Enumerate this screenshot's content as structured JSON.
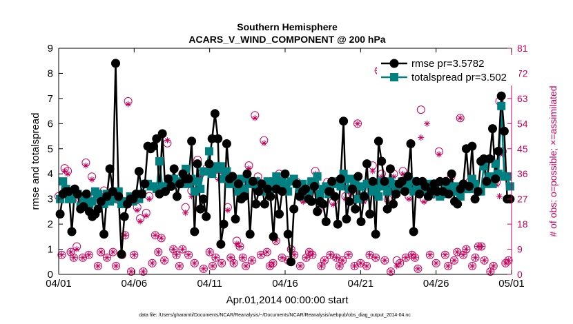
{
  "chart_data": {
    "type": "line",
    "title": "Southern Hemisphere",
    "subtitle": "ACARS_V_WIND_COMPONENT @ 200 hPa",
    "xlabel": "Apr.01,2014 00:00:00 start",
    "ylabel": "rmse and totalspread",
    "y2label": "# of obs: o=possible; ×=assimilated",
    "footnote": "data file: /Users/gharamti/Documents/NCAR/Reanalysis/~/Documents/NCAR/Reanalysis/webpub/obs_diag_output_2014-04.nc",
    "xlim": [
      0,
      30
    ],
    "ylim": [
      0,
      9
    ],
    "y2lim": [
      0,
      81
    ],
    "x_ticks": [
      {
        "value": 0,
        "label": "04/01"
      },
      {
        "value": 5,
        "label": "04/06"
      },
      {
        "value": 10,
        "label": "04/11"
      },
      {
        "value": 15,
        "label": "04/16"
      },
      {
        "value": 20,
        "label": "04/21"
      },
      {
        "value": 25,
        "label": "04/26"
      },
      {
        "value": 30,
        "label": "05/01"
      }
    ],
    "y_ticks": [
      "0",
      "1",
      "2",
      "3",
      "4",
      "5",
      "6",
      "7",
      "8",
      "9"
    ],
    "y2_ticks": [
      "0",
      "9",
      "18",
      "27",
      "36",
      "45",
      "54",
      "63",
      "72",
      "81"
    ],
    "legend_position": "top-right",
    "colors": {
      "rmse": "#000000",
      "spread": "#008080",
      "obs": "#c8005a"
    },
    "series": [
      {
        "name": "rmse pr=3.5782",
        "values": [
          2.4,
          3.2,
          3.3,
          3.3,
          1.7,
          3.4,
          3.2,
          2.6,
          2.7,
          3.2,
          2.5,
          2.3,
          2.4,
          2.6,
          2.9,
          1.6,
          3.1,
          4.2,
          3.3,
          8.4,
          3.1,
          0.8,
          2.3,
          2.8,
          3.0,
          3.0,
          3.2,
          4.1,
          3.2,
          3.6,
          5.1,
          5.0,
          5.1,
          5.4,
          3.2,
          5.6,
          3.3,
          3.8,
          3.5,
          4.2,
          3.1,
          3.6,
          4.0,
          3.8,
          3.8,
          5.3,
          1.7,
          4.4,
          2.6,
          3.0,
          2.3,
          4.4,
          5.4,
          6.4,
          5.4,
          1.2,
          2.0,
          5.2,
          3.8,
          3.9,
          2.2,
          3.6,
          3.0,
          3.1,
          4.0,
          1.6,
          3.7,
          2.8,
          3.3,
          3.6,
          2.8,
          3.4,
          3.1,
          1.5,
          3.4,
          2.4,
          3.3,
          4.0,
          1.6,
          0.5,
          2.6,
          3.6,
          3.1,
          3.3,
          3.4,
          3.0,
          2.9,
          3.5,
          2.5,
          2.9,
          2.8,
          2.1,
          3.3,
          3.7,
          3.1,
          2.0,
          3.8,
          6.1,
          2.2,
          2.9,
          3.4,
          2.6,
          3.9,
          2.1,
          3.1,
          4.4,
          2.4,
          3.7,
          1.6,
          5.3,
          4.5,
          3.7,
          2.6,
          4.2,
          2.8,
          3.2,
          3.6,
          3.7,
          3.3,
          3.9,
          5.2,
          1.7,
          3.7,
          3.2,
          3.7,
          3.5,
          3.1,
          3.3,
          3.6,
          3.3,
          3.7,
          3.3,
          3.7,
          3.2,
          4.0,
          2.9,
          2.8,
          3.4,
          3.6,
          5.0,
          3.5,
          5.1,
          3.0,
          3.3,
          4.5,
          4.6,
          3.7,
          4.6,
          5.8,
          3.8,
          4.9,
          7.1,
          5.7,
          3.0,
          3.0
        ]
      },
      {
        "name": "totalspread pr=3.502",
        "values": [
          3.0,
          3.7,
          3.4,
          3.0,
          3.0,
          3.3,
          3.2,
          2.7,
          3.0,
          3.0,
          2.8,
          2.9,
          3.3,
          3.2,
          3.0,
          2.8,
          3.2,
          2.9,
          3.0,
          3.2,
          3.3,
          2.8,
          2.9,
          2.9,
          3.1,
          2.9,
          3.1,
          3.0,
          3.2,
          3.6,
          3.6,
          3.5,
          3.5,
          3.4,
          4.5,
          3.5,
          3.5,
          3.6,
          3.7,
          3.8,
          3.7,
          3.6,
          3.6,
          4.2,
          3.6,
          3.8,
          3.3,
          3.7,
          3.4,
          4.1,
          4.1,
          4.9,
          4.0,
          4.3,
          4.2,
          4.3,
          3.8,
          4.1,
          3.6,
          3.6,
          3.7,
          3.3,
          3.8,
          3.4,
          3.9,
          3.6,
          3.6,
          3.7,
          3.5,
          3.3,
          3.5,
          3.7,
          3.4,
          3.7,
          3.9,
          3.5,
          3.7,
          3.6,
          3.3,
          3.7,
          3.8,
          3.6,
          3.4,
          3.6,
          3.1,
          3.3,
          3.7,
          3.6,
          3.9,
          3.2,
          3.4,
          3.5,
          3.2,
          3.6,
          3.6,
          3.7,
          3.5,
          4.0,
          3.8,
          3.4,
          3.8,
          3.6,
          3.0,
          3.5,
          3.1,
          3.6,
          3.6,
          3.3,
          3.4,
          3.1,
          3.7,
          3.5,
          3.3,
          3.7,
          3.6,
          3.5,
          3.4,
          3.7,
          3.6,
          3.5,
          3.7,
          3.3,
          3.6,
          3.4,
          3.5,
          3.3,
          3.6,
          3.2,
          3.6,
          3.3,
          3.1,
          3.2,
          3.6,
          3.3,
          3.5,
          3.3,
          3.5,
          3.1,
          3.4,
          3.4,
          3.4,
          3.8,
          3.6,
          3.3,
          3.3,
          4.3,
          3.6,
          3.9,
          3.6,
          4.4,
          4.0,
          6.7,
          3.9,
          3.9,
          3.5
        ]
      }
    ],
    "obs_possible": [
      [
        0.0,
        28
      ],
      [
        0.2,
        7
      ],
      [
        0.4,
        38
      ],
      [
        0.6,
        37
      ],
      [
        0.8,
        8
      ],
      [
        1.0,
        6
      ],
      [
        1.2,
        10
      ],
      [
        1.4,
        27
      ],
      [
        1.6,
        6
      ],
      [
        1.8,
        40
      ],
      [
        2.0,
        7
      ],
      [
        2.2,
        35
      ],
      [
        2.4,
        28
      ],
      [
        2.6,
        3
      ],
      [
        2.8,
        8
      ],
      [
        3.0,
        30
      ],
      [
        3.2,
        6
      ],
      [
        3.4,
        27
      ],
      [
        3.6,
        8
      ],
      [
        3.8,
        3
      ],
      [
        4.0,
        27
      ],
      [
        4.2,
        7
      ],
      [
        4.4,
        14
      ],
      [
        4.6,
        62
      ],
      [
        4.8,
        1
      ],
      [
        5.0,
        7
      ],
      [
        5.2,
        24
      ],
      [
        5.4,
        20
      ],
      [
        5.6,
        1
      ],
      [
        5.8,
        22
      ],
      [
        6.0,
        28
      ],
      [
        6.2,
        4
      ],
      [
        6.4,
        14
      ],
      [
        6.6,
        8
      ],
      [
        6.8,
        13
      ],
      [
        7.0,
        5
      ],
      [
        7.2,
        47
      ],
      [
        7.4,
        33
      ],
      [
        7.6,
        9
      ],
      [
        7.8,
        7
      ],
      [
        8.0,
        3
      ],
      [
        8.2,
        9
      ],
      [
        8.4,
        24
      ],
      [
        8.6,
        7
      ],
      [
        8.8,
        30
      ],
      [
        9.0,
        4
      ],
      [
        9.2,
        41
      ],
      [
        9.4,
        36
      ],
      [
        9.6,
        2
      ],
      [
        9.8,
        38
      ],
      [
        10.0,
        8
      ],
      [
        10.2,
        3
      ],
      [
        10.4,
        6
      ],
      [
        10.6,
        35
      ],
      [
        10.8,
        4
      ],
      [
        11.0,
        37
      ],
      [
        11.2,
        24
      ],
      [
        11.4,
        6
      ],
      [
        11.6,
        4
      ],
      [
        11.8,
        12
      ],
      [
        12.0,
        10
      ],
      [
        12.2,
        6
      ],
      [
        12.4,
        3
      ],
      [
        12.6,
        39
      ],
      [
        12.8,
        5
      ],
      [
        13.0,
        57
      ],
      [
        13.2,
        35
      ],
      [
        13.4,
        7
      ],
      [
        13.6,
        48
      ],
      [
        13.8,
        8
      ],
      [
        14.0,
        3
      ],
      [
        14.2,
        4
      ],
      [
        14.4,
        12
      ],
      [
        14.6,
        36
      ],
      [
        14.8,
        6
      ],
      [
        15.0,
        31
      ],
      [
        15.2,
        5
      ],
      [
        15.4,
        9
      ],
      [
        15.6,
        7
      ],
      [
        15.8,
        33
      ],
      [
        16.0,
        3
      ],
      [
        16.2,
        27
      ],
      [
        16.4,
        6
      ],
      [
        16.6,
        8
      ],
      [
        16.8,
        7
      ],
      [
        17.0,
        37
      ],
      [
        17.2,
        23
      ],
      [
        17.4,
        3
      ],
      [
        17.6,
        5
      ],
      [
        17.8,
        33
      ],
      [
        18.0,
        7
      ],
      [
        18.2,
        26
      ],
      [
        18.4,
        6
      ],
      [
        18.6,
        3
      ],
      [
        18.8,
        5
      ],
      [
        19.0,
        28
      ],
      [
        19.2,
        7
      ],
      [
        19.4,
        30
      ],
      [
        19.6,
        3
      ],
      [
        19.8,
        54
      ],
      [
        20.0,
        4
      ],
      [
        20.2,
        27
      ],
      [
        20.4,
        3
      ],
      [
        20.6,
        7
      ],
      [
        20.8,
        39
      ],
      [
        21.0,
        6
      ],
      [
        21.2,
        73
      ],
      [
        21.4,
        36
      ],
      [
        21.6,
        5
      ],
      [
        21.8,
        27
      ],
      [
        22.0,
        1
      ],
      [
        22.2,
        36
      ],
      [
        22.4,
        5
      ],
      [
        22.6,
        4
      ],
      [
        22.8,
        37
      ],
      [
        23.0,
        6
      ],
      [
        23.2,
        28
      ],
      [
        23.4,
        7
      ],
      [
        23.6,
        6
      ],
      [
        23.8,
        2
      ],
      [
        24.0,
        59
      ],
      [
        24.2,
        27
      ],
      [
        24.4,
        30
      ],
      [
        24.6,
        7
      ],
      [
        24.8,
        29
      ],
      [
        25.0,
        4
      ],
      [
        25.2,
        44
      ],
      [
        25.4,
        29
      ],
      [
        25.6,
        7
      ],
      [
        25.8,
        3
      ],
      [
        26.0,
        35
      ],
      [
        26.2,
        5
      ],
      [
        26.4,
        8
      ],
      [
        26.6,
        56
      ],
      [
        26.8,
        7
      ],
      [
        27.0,
        9
      ],
      [
        27.2,
        33
      ],
      [
        27.4,
        3
      ],
      [
        27.6,
        6
      ],
      [
        27.8,
        10
      ],
      [
        28.0,
        10
      ],
      [
        28.2,
        5
      ],
      [
        28.4,
        34
      ],
      [
        28.6,
        1
      ],
      [
        28.8,
        3
      ],
      [
        29.0,
        33
      ],
      [
        29.2,
        62
      ],
      [
        29.4,
        44
      ],
      [
        29.6,
        4
      ],
      [
        29.8,
        5
      ]
    ],
    "obs_assimilated": [
      [
        0.0,
        27
      ],
      [
        0.2,
        7
      ],
      [
        0.4,
        37
      ],
      [
        0.6,
        36
      ],
      [
        0.8,
        8
      ],
      [
        1.0,
        6
      ],
      [
        1.2,
        9
      ],
      [
        1.4,
        26
      ],
      [
        1.6,
        6
      ],
      [
        1.8,
        39
      ],
      [
        2.0,
        7
      ],
      [
        2.2,
        34
      ],
      [
        2.4,
        27
      ],
      [
        2.6,
        3
      ],
      [
        2.8,
        8
      ],
      [
        3.0,
        29
      ],
      [
        3.2,
        6
      ],
      [
        3.4,
        26
      ],
      [
        3.6,
        8
      ],
      [
        3.8,
        3
      ],
      [
        4.0,
        26
      ],
      [
        4.2,
        7
      ],
      [
        4.4,
        14
      ],
      [
        4.6,
        61
      ],
      [
        4.8,
        1
      ],
      [
        5.0,
        7
      ],
      [
        5.2,
        23
      ],
      [
        5.4,
        19
      ],
      [
        5.6,
        1
      ],
      [
        5.8,
        21
      ],
      [
        6.0,
        27
      ],
      [
        6.2,
        4
      ],
      [
        6.4,
        14
      ],
      [
        6.6,
        8
      ],
      [
        6.8,
        13
      ],
      [
        7.0,
        5
      ],
      [
        7.2,
        48
      ],
      [
        7.4,
        32
      ],
      [
        7.6,
        9
      ],
      [
        7.8,
        7
      ],
      [
        8.0,
        3
      ],
      [
        8.2,
        9
      ],
      [
        8.4,
        22
      ],
      [
        8.6,
        7
      ],
      [
        8.8,
        28
      ],
      [
        9.0,
        4
      ],
      [
        9.2,
        40
      ],
      [
        9.4,
        35
      ],
      [
        9.6,
        2
      ],
      [
        9.8,
        37
      ],
      [
        10.0,
        8
      ],
      [
        10.2,
        3
      ],
      [
        10.4,
        6
      ],
      [
        10.6,
        34
      ],
      [
        10.8,
        4
      ],
      [
        11.0,
        36
      ],
      [
        11.2,
        23
      ],
      [
        11.4,
        6
      ],
      [
        11.6,
        4
      ],
      [
        11.8,
        11
      ],
      [
        12.0,
        10
      ],
      [
        12.2,
        6
      ],
      [
        12.4,
        3
      ],
      [
        12.6,
        38
      ],
      [
        12.8,
        5
      ],
      [
        13.0,
        56
      ],
      [
        13.2,
        34
      ],
      [
        13.4,
        7
      ],
      [
        13.6,
        47
      ],
      [
        13.8,
        8
      ],
      [
        14.0,
        3
      ],
      [
        14.2,
        4
      ],
      [
        14.4,
        12
      ],
      [
        14.6,
        35
      ],
      [
        14.8,
        6
      ],
      [
        15.0,
        30
      ],
      [
        15.2,
        5
      ],
      [
        15.4,
        9
      ],
      [
        15.6,
        7
      ],
      [
        15.8,
        32
      ],
      [
        16.0,
        3
      ],
      [
        16.2,
        26
      ],
      [
        16.4,
        6
      ],
      [
        16.6,
        8
      ],
      [
        16.8,
        7
      ],
      [
        17.0,
        36
      ],
      [
        17.2,
        22
      ],
      [
        17.4,
        3
      ],
      [
        17.6,
        5
      ],
      [
        17.8,
        32
      ],
      [
        18.0,
        7
      ],
      [
        18.2,
        25
      ],
      [
        18.4,
        6
      ],
      [
        18.6,
        3
      ],
      [
        18.8,
        5
      ],
      [
        19.0,
        27
      ],
      [
        19.2,
        7
      ],
      [
        19.4,
        29
      ],
      [
        19.6,
        3
      ],
      [
        19.8,
        54
      ],
      [
        20.0,
        4
      ],
      [
        20.2,
        26
      ],
      [
        20.4,
        3
      ],
      [
        20.6,
        7
      ],
      [
        20.8,
        37
      ],
      [
        21.0,
        6
      ],
      [
        21.2,
        73
      ],
      [
        21.4,
        35
      ],
      [
        21.6,
        5
      ],
      [
        21.8,
        26
      ],
      [
        22.0,
        1
      ],
      [
        22.2,
        35
      ],
      [
        22.4,
        3
      ],
      [
        22.6,
        4
      ],
      [
        22.8,
        36
      ],
      [
        23.0,
        6
      ],
      [
        23.2,
        27
      ],
      [
        23.4,
        7
      ],
      [
        23.6,
        6
      ],
      [
        23.8,
        2
      ],
      [
        24.0,
        49
      ],
      [
        24.2,
        26
      ],
      [
        24.4,
        54
      ],
      [
        24.6,
        7
      ],
      [
        24.8,
        28
      ],
      [
        25.0,
        4
      ],
      [
        25.2,
        43
      ],
      [
        25.4,
        28
      ],
      [
        25.6,
        7
      ],
      [
        25.8,
        3
      ],
      [
        26.0,
        34
      ],
      [
        26.2,
        5
      ],
      [
        26.4,
        8
      ],
      [
        26.6,
        56
      ],
      [
        26.8,
        7
      ],
      [
        27.0,
        9
      ],
      [
        27.2,
        32
      ],
      [
        27.4,
        3
      ],
      [
        27.6,
        6
      ],
      [
        27.8,
        10
      ],
      [
        28.0,
        10
      ],
      [
        28.2,
        5
      ],
      [
        28.4,
        33
      ],
      [
        28.6,
        1
      ],
      [
        28.8,
        3
      ],
      [
        29.0,
        32
      ],
      [
        29.2,
        28
      ],
      [
        29.4,
        43
      ],
      [
        29.6,
        4
      ],
      [
        29.8,
        5
      ]
    ]
  }
}
